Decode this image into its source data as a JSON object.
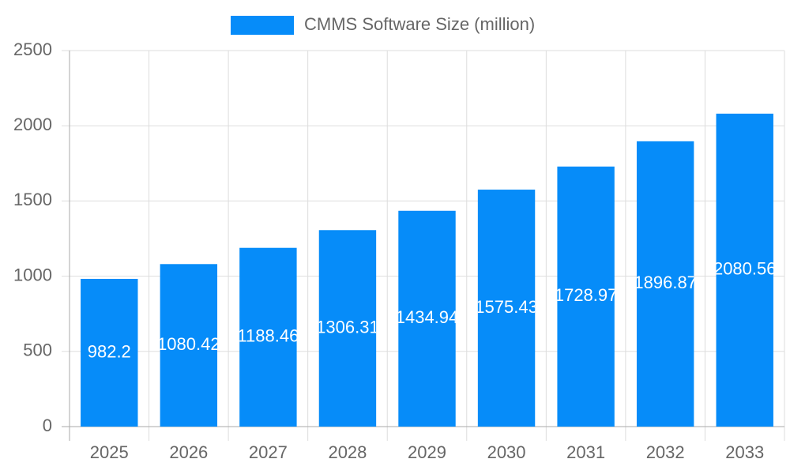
{
  "chart_data": {
    "type": "bar",
    "legend": "CMMS Software Size (million)",
    "categories": [
      "2025",
      "2026",
      "2027",
      "2028",
      "2029",
      "2030",
      "2031",
      "2032",
      "2033"
    ],
    "values": [
      982.2,
      1080.42,
      1188.46,
      1306.31,
      1434.94,
      1575.43,
      1728.97,
      1896.87,
      2080.56
    ],
    "color": "#068cf9",
    "ylim": [
      0,
      2500
    ],
    "yticks": [
      0,
      500,
      1000,
      1500,
      2000,
      2500
    ],
    "grid": true
  }
}
